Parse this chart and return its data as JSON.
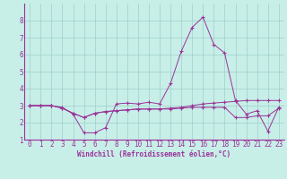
{
  "xlabel": "Windchill (Refroidissement éolien,°C)",
  "x_ticks": [
    0,
    1,
    2,
    3,
    4,
    5,
    6,
    7,
    8,
    9,
    10,
    11,
    12,
    13,
    14,
    15,
    16,
    17,
    18,
    19,
    20,
    21,
    22,
    23
  ],
  "ylim": [
    1,
    9
  ],
  "xlim": [
    -0.5,
    23.5
  ],
  "yticks": [
    1,
    2,
    3,
    4,
    5,
    6,
    7,
    8
  ],
  "background_color": "#c8eee8",
  "grid_color": "#9dcfcc",
  "line_color": "#993399",
  "line1": [
    3.0,
    3.0,
    3.0,
    2.9,
    2.5,
    1.4,
    1.4,
    1.7,
    3.1,
    3.15,
    3.1,
    3.2,
    3.1,
    4.3,
    6.2,
    7.6,
    8.2,
    6.6,
    6.1,
    3.3,
    2.5,
    2.7,
    1.5,
    2.9
  ],
  "line2": [
    3.0,
    3.0,
    3.0,
    2.85,
    2.55,
    2.3,
    2.55,
    2.65,
    2.7,
    2.75,
    2.8,
    2.8,
    2.8,
    2.85,
    2.9,
    3.0,
    3.1,
    3.15,
    3.2,
    3.25,
    3.3,
    3.3,
    3.3,
    3.3
  ],
  "line3": [
    3.0,
    3.0,
    3.0,
    2.85,
    2.55,
    2.3,
    2.55,
    2.65,
    2.7,
    2.75,
    2.8,
    2.8,
    2.8,
    2.8,
    2.85,
    2.9,
    2.9,
    2.9,
    2.9,
    2.3,
    2.3,
    2.4,
    2.4,
    2.85
  ],
  "tick_fontsize": 5.5,
  "xlabel_fontsize": 5.5
}
